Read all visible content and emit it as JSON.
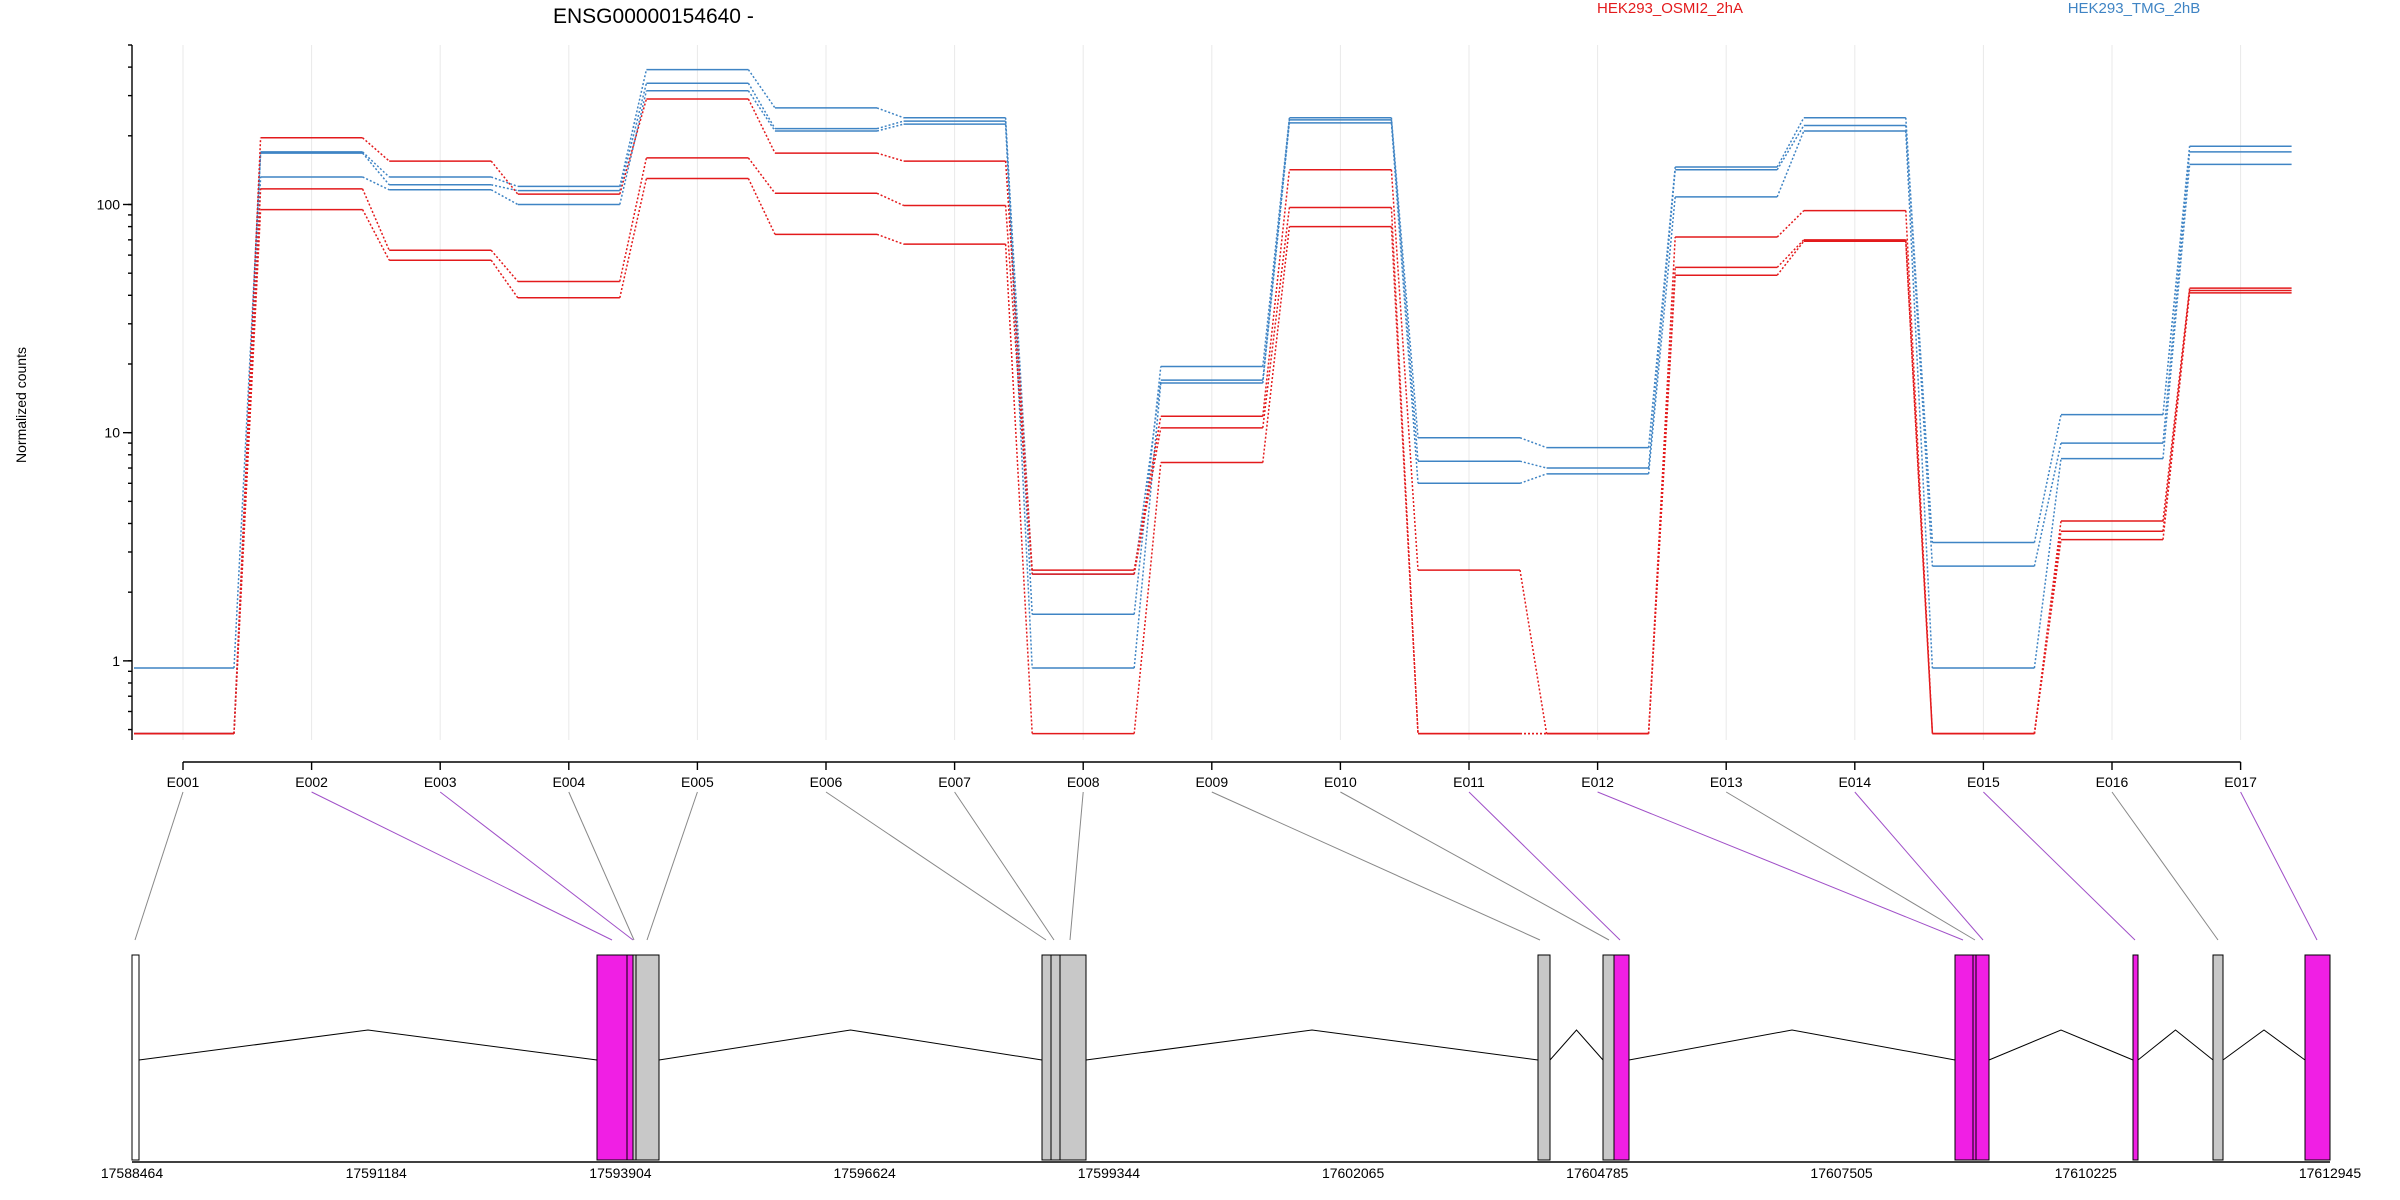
{
  "chart_data": {
    "type": "line",
    "title": "ENSG00000154640 -",
    "ylabel": "Normalized counts",
    "yscale": "log",
    "ylim": [
      0.45,
      500
    ],
    "yticks": [
      1,
      10,
      100
    ],
    "ytick_labels": [
      "1",
      "10",
      "100"
    ],
    "categories": [
      "E001",
      "E002",
      "E003",
      "E004",
      "E005",
      "E006",
      "E007",
      "E008",
      "E009",
      "E010",
      "E011",
      "E012",
      "E013",
      "E014",
      "E015",
      "E016",
      "E017"
    ],
    "legend": [
      {
        "label": "HEK293_OSMI2_2hA",
        "color": "#e31a1c"
      },
      {
        "label": "HEK293_TMG_2hB",
        "color": "#3f84c4"
      }
    ],
    "series": [
      {
        "group": "HEK293_TMG_2hB",
        "color": "#3f84c4",
        "values": [
          0.93,
          170,
          132,
          120,
          390,
          265,
          240,
          1.6,
          19.5,
          240,
          9.5,
          8.6,
          146,
          240,
          3.3,
          12.0,
          180
        ]
      },
      {
        "group": "HEK293_TMG_2hB",
        "color": "#3f84c4",
        "values": [
          0.48,
          168,
          122,
          115,
          340,
          215,
          232,
          2.4,
          17.0,
          235,
          7.5,
          7.0,
          142,
          222,
          2.6,
          9.0,
          170
        ]
      },
      {
        "group": "HEK293_TMG_2hB",
        "color": "#3f84c4",
        "values": [
          0.48,
          132,
          116,
          100,
          315,
          210,
          225,
          0.93,
          16.5,
          228,
          6.0,
          6.6,
          108,
          210,
          0.93,
          7.7,
          150
        ]
      },
      {
        "group": "HEK293_OSMI2_2hA",
        "color": "#e31a1c",
        "values": [
          0.48,
          196,
          155,
          111,
          290,
          168,
          155,
          2.5,
          11.8,
          142,
          2.5,
          0.48,
          72,
          94,
          0.48,
          4.1,
          43
        ]
      },
      {
        "group": "HEK293_OSMI2_2hA",
        "color": "#e31a1c",
        "values": [
          0.48,
          117,
          63,
          46,
          160,
          112,
          99,
          2.4,
          10.5,
          97,
          0.48,
          0.48,
          53,
          70,
          0.48,
          3.7,
          42
        ]
      },
      {
        "group": "HEK293_OSMI2_2hA",
        "color": "#e31a1c",
        "values": [
          0.48,
          95,
          57,
          39,
          130,
          74,
          67,
          0.48,
          7.4,
          80,
          0.48,
          0.48,
          49,
          69,
          0.48,
          3.4,
          41
        ]
      }
    ],
    "gene_model": {
      "coordinate_labels": [
        "17588464",
        "17591184",
        "17593904",
        "17596624",
        "17599344",
        "17602065",
        "17604785",
        "17607505",
        "17610225",
        "17612945"
      ],
      "exon_colors": {
        "differential": "#f01fe4",
        "other": "#c8c8c8"
      }
    }
  }
}
